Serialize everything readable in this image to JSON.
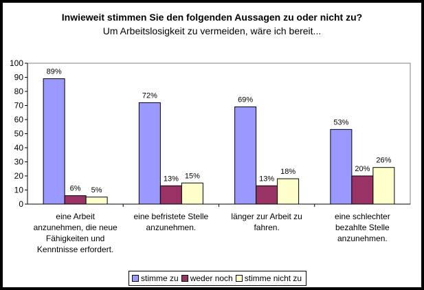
{
  "chart_data": {
    "type": "bar",
    "title": "Inwieweit stimmen Sie den folgenden Aussagen zu oder nicht zu?",
    "subtitle": "Um Arbeitslosigkeit zu vermeiden, wäre ich bereit...",
    "categories": [
      [
        "eine Arbeit",
        "anzunehmen, die neue",
        "Fähigkeiten und",
        "Kenntnisse erfordert."
      ],
      [
        "eine befristete Stelle",
        "anzunehmen."
      ],
      [
        "länger zur Arbeit zu",
        "fahren."
      ],
      [
        "eine schlechter",
        "bezahlte Stelle",
        "anzunehmen."
      ]
    ],
    "series": [
      {
        "name": "stimme zu",
        "color": "#9999ff",
        "values": [
          89,
          72,
          69,
          53
        ],
        "labels": [
          "89%",
          "72%",
          "69%",
          "53%"
        ]
      },
      {
        "name": "weder noch",
        "color": "#993366",
        "values": [
          6,
          13,
          13,
          20
        ],
        "labels": [
          "6%",
          "13%",
          "13%",
          "20%"
        ]
      },
      {
        "name": "stimme nicht zu",
        "color": "#ffffcc",
        "values": [
          5,
          15,
          18,
          26
        ],
        "labels": [
          "5%",
          "15%",
          "18%",
          "26%"
        ]
      }
    ],
    "ylim": [
      0,
      100
    ],
    "yticks": [
      "0",
      "10",
      "20",
      "30",
      "40",
      "50",
      "60",
      "70",
      "80",
      "90",
      "100"
    ],
    "grid": false,
    "legend_position": "bottom"
  }
}
